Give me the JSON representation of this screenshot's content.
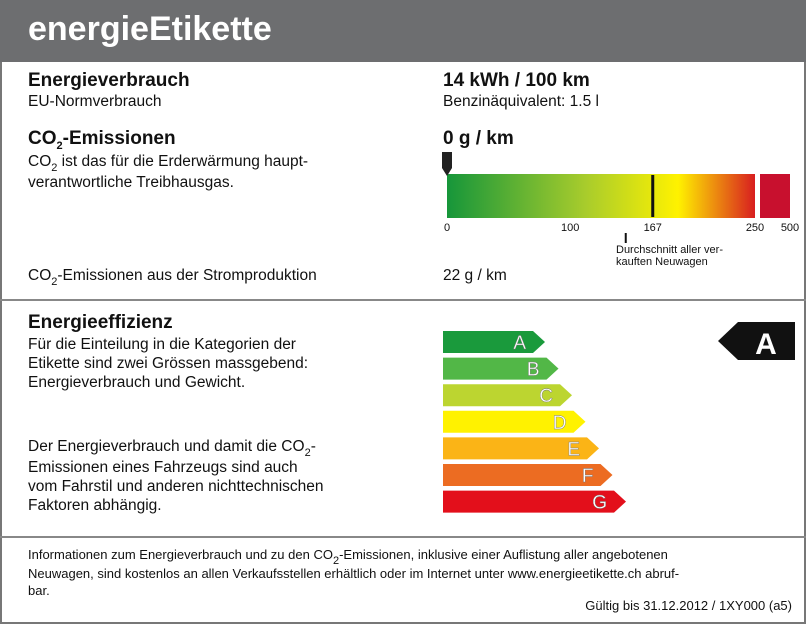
{
  "header": {
    "title": "energieEtikette"
  },
  "consumption": {
    "heading": "Energieverbrauch",
    "subheading": "EU-Normverbrauch",
    "value": "14 kWh / 100 km",
    "equivalent": "Benzinäquivalent: 1.5 l"
  },
  "co2": {
    "heading": [
      "CO",
      "2",
      "-Emissionen"
    ],
    "text": [
      [
        "CO",
        "2",
        " ist das für die Erderwärmung haupt-"
      ],
      [
        "verantwortliche Treibhausgas."
      ]
    ],
    "value": "0 g / km",
    "scale": {
      "marker": 0,
      "ticks": [
        0,
        100,
        167,
        250,
        500
      ],
      "average": 167,
      "average_label": [
        "Durchschnitt aller ver-",
        "kauften Neuwagen"
      ]
    },
    "production_label": [
      "CO",
      "2",
      "-Emissionen aus der Stromproduktion"
    ],
    "production_value": "22 g / km"
  },
  "efficiency": {
    "heading": "Energieeffizienz",
    "text1": [
      "Für die Einteilung in die Kategorien der",
      "Etikette sind zwei Grössen massgebend:",
      "Energieverbrauch und Gewicht."
    ],
    "text2": [
      [
        "Der Energieverbrauch und damit die CO",
        "2",
        "-"
      ],
      [
        "Emissionen eines Fahrzeugs sind auch"
      ],
      [
        "vom Fahrstil und anderen nichttechnischen"
      ],
      [
        "Faktoren abhängig."
      ]
    ],
    "classes": [
      {
        "label": "A",
        "color": "#1a9a3c"
      },
      {
        "label": "B",
        "color": "#52b747"
      },
      {
        "label": "C",
        "color": "#bcd530"
      },
      {
        "label": "D",
        "color": "#fff200"
      },
      {
        "label": "E",
        "color": "#fbb416"
      },
      {
        "label": "F",
        "color": "#ec6c22"
      },
      {
        "label": "G",
        "color": "#e30f1b"
      }
    ],
    "current": "A"
  },
  "footer": {
    "lines": [
      [
        "Informationen zum Energieverbrauch und zu den CO",
        "2",
        "-Emissionen, inklusive einer Auflistung aller angebotenen"
      ],
      [
        "Neuwagen, sind kostenlos an allen Verkaufsstellen erhältlich oder im Internet unter www.energieetikette.ch abruf-"
      ],
      [
        "bar."
      ]
    ],
    "validity": "Gültig bis 31.12.2012 / 1XY000 (a5)"
  }
}
